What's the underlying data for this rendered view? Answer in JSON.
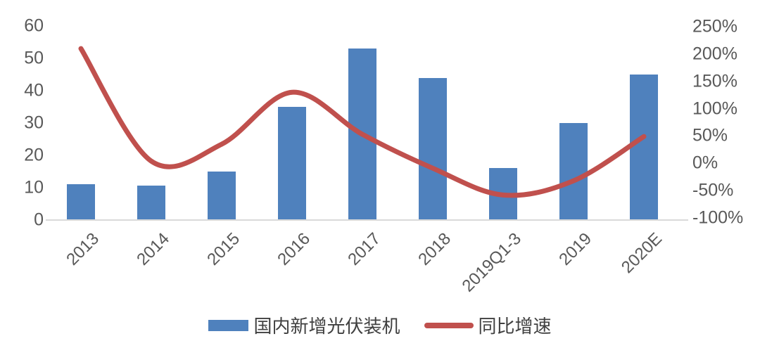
{
  "chart_data": {
    "type": "bar",
    "combo": "bar+line",
    "title": "",
    "categories": [
      "2013",
      "2014",
      "2015",
      "2016",
      "2017",
      "2018",
      "2019Q1-3",
      "2019",
      "2020E"
    ],
    "series": [
      {
        "name": "国内新增光伏装机",
        "type": "bar",
        "axis": "left",
        "values": [
          11,
          10.6,
          15,
          35,
          53,
          44,
          16,
          30,
          45
        ]
      },
      {
        "name": "同比增速",
        "type": "line",
        "axis": "right",
        "unit": "%",
        "values": [
          210,
          4,
          35,
          130,
          53,
          -9,
          -58,
          -32,
          49
        ]
      }
    ],
    "left_axis": {
      "min": 0,
      "max": 60,
      "ticks": [
        "60",
        "50",
        "40",
        "30",
        "20",
        "10",
        "0"
      ]
    },
    "right_axis": {
      "min": -100,
      "max": 250,
      "ticks": [
        "250%",
        "200%",
        "150%",
        "100%",
        "50%",
        "0%",
        "-50%",
        "-100%"
      ]
    },
    "legend_position": "bottom",
    "grid": false,
    "line_smooth": true
  },
  "colors": {
    "bar": "#4f81bd",
    "line": "#c0504d",
    "axis_text": "#595959",
    "legend_text": "#404040",
    "axis_line": "#d9d9d9",
    "background": "#ffffff"
  }
}
